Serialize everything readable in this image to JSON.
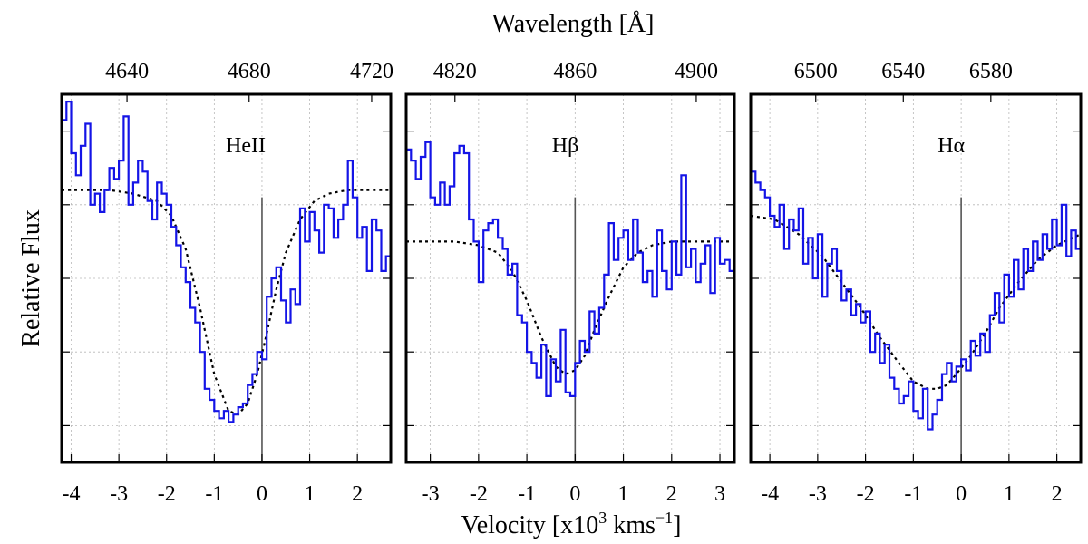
{
  "chart_data": {
    "type": "line",
    "top_axis_label": "Wavelength [Å]",
    "bottom_axis_label": "Velocity [x10^3 kms^-1]",
    "xlabel_parts": {
      "pre": "Velocity [x10",
      "exp1": "3",
      "mid": " kms",
      "exp2": "−1",
      "post": "]"
    },
    "ylabel": "Relative Flux",
    "ylim": [
      0,
      1
    ],
    "y_ticks": [
      0.1,
      0.3,
      0.5,
      0.7,
      0.9
    ],
    "grid": true,
    "panels": [
      {
        "line_label": "HeII",
        "xlim": [
          -4.2,
          2.7
        ],
        "x_ticks": [
          -4,
          -3,
          -2,
          -1,
          0,
          1,
          2
        ],
        "x_tick_labels": [
          "-4",
          "-3",
          "-2",
          "-1",
          "0",
          "1",
          "2"
        ],
        "top_ticks": [
          -2.83,
          -0.27,
          2.3
        ],
        "top_tick_labels": [
          "4640",
          "4680",
          "4720"
        ],
        "spectrum_velocity": [
          -4.15,
          -4.05,
          -3.95,
          -3.85,
          -3.75,
          -3.65,
          -3.55,
          -3.45,
          -3.35,
          -3.25,
          -3.15,
          -3.05,
          -2.95,
          -2.85,
          -2.75,
          -2.65,
          -2.55,
          -2.45,
          -2.35,
          -2.25,
          -2.15,
          -2.05,
          -1.95,
          -1.85,
          -1.75,
          -1.65,
          -1.55,
          -1.45,
          -1.35,
          -1.25,
          -1.15,
          -1.05,
          -0.95,
          -0.85,
          -0.75,
          -0.65,
          -0.55,
          -0.45,
          -0.35,
          -0.25,
          -0.15,
          -0.05,
          0.05,
          0.15,
          0.25,
          0.35,
          0.45,
          0.55,
          0.65,
          0.75,
          0.85,
          0.95,
          1.05,
          1.15,
          1.25,
          1.35,
          1.45,
          1.55,
          1.65,
          1.75,
          1.85,
          1.95,
          2.05,
          2.15,
          2.25,
          2.35,
          2.45,
          2.55,
          2.65
        ],
        "spectrum_flux": [
          0.93,
          0.98,
          0.84,
          0.78,
          0.86,
          0.92,
          0.7,
          0.73,
          0.68,
          0.74,
          0.8,
          0.77,
          0.82,
          0.94,
          0.7,
          0.76,
          0.82,
          0.79,
          0.71,
          0.66,
          0.76,
          0.73,
          0.7,
          0.64,
          0.59,
          0.53,
          0.49,
          0.42,
          0.38,
          0.3,
          0.2,
          0.17,
          0.14,
          0.12,
          0.14,
          0.11,
          0.13,
          0.15,
          0.16,
          0.21,
          0.24,
          0.3,
          0.28,
          0.45,
          0.5,
          0.53,
          0.44,
          0.38,
          0.47,
          0.43,
          0.69,
          0.6,
          0.68,
          0.63,
          0.57,
          0.7,
          0.69,
          0.61,
          0.66,
          0.7,
          0.82,
          0.72,
          0.61,
          0.64,
          0.52,
          0.66,
          0.63,
          0.52,
          0.56
        ],
        "fit_velocity": [
          -4.2,
          -3.7,
          -3.2,
          -2.7,
          -2.2,
          -1.9,
          -1.6,
          -1.3,
          -1.0,
          -0.7,
          -0.5,
          -0.3,
          -0.1,
          0.1,
          0.3,
          0.5,
          0.8,
          1.1,
          1.4,
          1.8,
          2.2,
          2.7
        ],
        "fit_flux": [
          0.74,
          0.74,
          0.74,
          0.73,
          0.71,
          0.67,
          0.58,
          0.42,
          0.24,
          0.14,
          0.13,
          0.16,
          0.24,
          0.35,
          0.47,
          0.57,
          0.66,
          0.71,
          0.73,
          0.74,
          0.74,
          0.74
        ]
      },
      {
        "line_label": "Hβ",
        "xlim": [
          -3.5,
          3.3
        ],
        "x_ticks": [
          -3,
          -2,
          -1,
          0,
          1,
          2,
          3
        ],
        "x_tick_labels": [
          "-3",
          "-2",
          "-1",
          "0",
          "1",
          "2",
          "3"
        ],
        "top_ticks": [
          -2.49,
          0.0,
          2.51
        ],
        "top_tick_labels": [
          "4820",
          "4860",
          "4900"
        ],
        "spectrum_velocity": [
          -3.45,
          -3.35,
          -3.25,
          -3.15,
          -3.05,
          -2.95,
          -2.85,
          -2.75,
          -2.65,
          -2.55,
          -2.45,
          -2.35,
          -2.25,
          -2.15,
          -2.05,
          -1.95,
          -1.85,
          -1.75,
          -1.65,
          -1.55,
          -1.45,
          -1.35,
          -1.25,
          -1.15,
          -1.05,
          -0.95,
          -0.85,
          -0.75,
          -0.65,
          -0.55,
          -0.45,
          -0.35,
          -0.25,
          -0.15,
          -0.05,
          0.05,
          0.15,
          0.25,
          0.35,
          0.45,
          0.55,
          0.65,
          0.75,
          0.85,
          0.95,
          1.05,
          1.15,
          1.25,
          1.35,
          1.45,
          1.55,
          1.65,
          1.75,
          1.85,
          1.95,
          2.05,
          2.15,
          2.25,
          2.35,
          2.45,
          2.55,
          2.65,
          2.75,
          2.85,
          2.95,
          3.05,
          3.15,
          3.25
        ],
        "spectrum_flux": [
          0.85,
          0.82,
          0.77,
          0.83,
          0.87,
          0.72,
          0.7,
          0.76,
          0.7,
          0.75,
          0.84,
          0.86,
          0.84,
          0.66,
          0.6,
          0.49,
          0.63,
          0.65,
          0.66,
          0.61,
          0.58,
          0.51,
          0.54,
          0.4,
          0.38,
          0.3,
          0.27,
          0.23,
          0.32,
          0.18,
          0.28,
          0.22,
          0.36,
          0.19,
          0.18,
          0.27,
          0.33,
          0.3,
          0.41,
          0.35,
          0.42,
          0.51,
          0.65,
          0.55,
          0.61,
          0.63,
          0.55,
          0.66,
          0.57,
          0.49,
          0.52,
          0.45,
          0.63,
          0.52,
          0.47,
          0.6,
          0.51,
          0.78,
          0.53,
          0.58,
          0.49,
          0.54,
          0.59,
          0.46,
          0.61,
          0.54,
          0.55,
          0.52
        ],
        "fit_velocity": [
          -3.5,
          -3.0,
          -2.5,
          -2.0,
          -1.6,
          -1.3,
          -1.0,
          -0.7,
          -0.4,
          -0.2,
          0.0,
          0.2,
          0.4,
          0.7,
          1.0,
          1.3,
          1.6,
          2.0,
          2.5,
          3.0,
          3.3
        ],
        "fit_flux": [
          0.6,
          0.6,
          0.6,
          0.59,
          0.57,
          0.52,
          0.44,
          0.34,
          0.26,
          0.24,
          0.25,
          0.29,
          0.36,
          0.45,
          0.53,
          0.57,
          0.59,
          0.6,
          0.6,
          0.6,
          0.6
        ]
      },
      {
        "line_label": "Hα",
        "xlim": [
          -4.4,
          2.5
        ],
        "x_ticks": [
          -4,
          -3,
          -2,
          -1,
          0,
          1,
          2
        ],
        "x_tick_labels": [
          "-4",
          "-3",
          "-2",
          "-1",
          "0",
          "1",
          "2"
        ],
        "top_ticks": [
          -3.04,
          -1.21,
          0.62
        ],
        "top_tick_labels": [
          "6500",
          "6540",
          "6580"
        ],
        "spectrum_velocity": [
          -4.35,
          -4.25,
          -4.15,
          -4.05,
          -3.95,
          -3.85,
          -3.75,
          -3.65,
          -3.55,
          -3.45,
          -3.35,
          -3.25,
          -3.15,
          -3.05,
          -2.95,
          -2.85,
          -2.75,
          -2.65,
          -2.55,
          -2.45,
          -2.35,
          -2.25,
          -2.15,
          -2.05,
          -1.95,
          -1.85,
          -1.75,
          -1.65,
          -1.55,
          -1.45,
          -1.35,
          -1.25,
          -1.15,
          -1.05,
          -0.95,
          -0.85,
          -0.75,
          -0.65,
          -0.55,
          -0.45,
          -0.35,
          -0.25,
          -0.15,
          -0.05,
          0.05,
          0.15,
          0.25,
          0.35,
          0.45,
          0.55,
          0.65,
          0.75,
          0.85,
          0.95,
          1.05,
          1.15,
          1.25,
          1.35,
          1.45,
          1.55,
          1.65,
          1.75,
          1.85,
          1.95,
          2.05,
          2.15,
          2.25,
          2.35,
          2.45
        ],
        "spectrum_flux": [
          0.79,
          0.76,
          0.74,
          0.72,
          0.67,
          0.64,
          0.7,
          0.58,
          0.66,
          0.63,
          0.69,
          0.54,
          0.61,
          0.5,
          0.62,
          0.45,
          0.54,
          0.58,
          0.52,
          0.44,
          0.47,
          0.4,
          0.43,
          0.38,
          0.41,
          0.3,
          0.35,
          0.27,
          0.32,
          0.23,
          0.2,
          0.16,
          0.18,
          0.22,
          0.14,
          0.12,
          0.2,
          0.09,
          0.13,
          0.17,
          0.24,
          0.27,
          0.22,
          0.26,
          0.28,
          0.25,
          0.33,
          0.29,
          0.35,
          0.3,
          0.4,
          0.46,
          0.38,
          0.51,
          0.45,
          0.55,
          0.47,
          0.58,
          0.52,
          0.6,
          0.55,
          0.62,
          0.58,
          0.66,
          0.59,
          0.7,
          0.56,
          0.63,
          0.58
        ],
        "fit_velocity": [
          -4.4,
          -3.9,
          -3.4,
          -2.9,
          -2.5,
          -2.1,
          -1.7,
          -1.3,
          -1.0,
          -0.7,
          -0.5,
          -0.3,
          -0.1,
          0.2,
          0.5,
          0.8,
          1.2,
          1.6,
          2.0,
          2.5
        ],
        "fit_flux": [
          0.67,
          0.66,
          0.62,
          0.56,
          0.49,
          0.42,
          0.34,
          0.27,
          0.22,
          0.2,
          0.2,
          0.21,
          0.24,
          0.29,
          0.35,
          0.42,
          0.49,
          0.55,
          0.59,
          0.62
        ]
      }
    ]
  }
}
